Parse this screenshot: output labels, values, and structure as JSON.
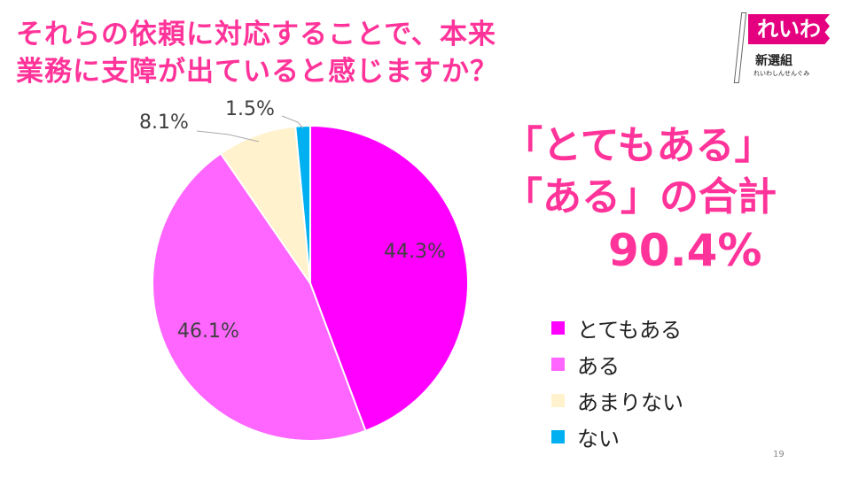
{
  "title_lines": [
    "それらの依頼に対応することで、本来",
    "業務に支障が出ていると感じますか？"
  ],
  "summary": {
    "line1": "「とてもある」",
    "line2": "「ある」の合計",
    "value": "90.4%"
  },
  "logo": {
    "main": "れいわ",
    "sub": "新選組",
    "kana": "れいわしんせんぐみ"
  },
  "page_number": "19",
  "chart_data": {
    "type": "pie",
    "start": "top",
    "direction": "clockwise",
    "categories": [
      "とてもある",
      "ある",
      "あまりない",
      "ない"
    ],
    "values": [
      44.3,
      46.1,
      8.1,
      1.5
    ],
    "labels": [
      "44.3%",
      "46.1%",
      "8.1%",
      "1.5%"
    ],
    "colors": [
      "#FF00FF",
      "#FF66FF",
      "#FFF2CC",
      "#00B0F0"
    ],
    "legend": "right"
  }
}
